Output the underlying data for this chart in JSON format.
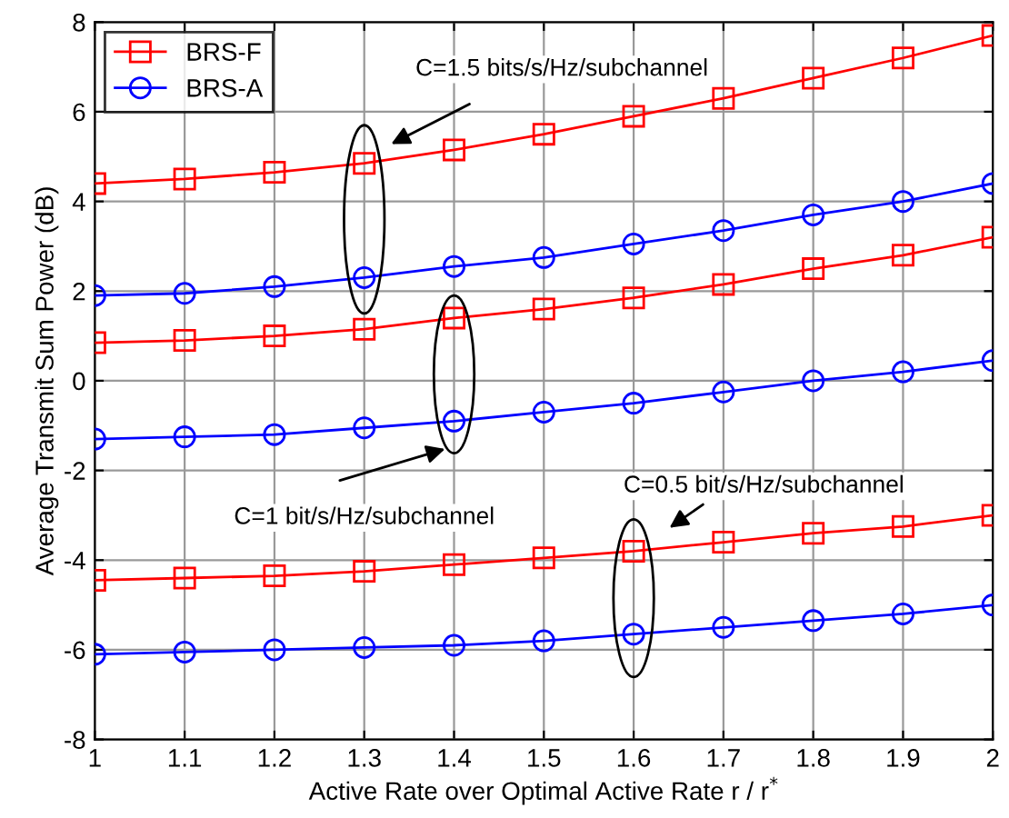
{
  "chart_data": {
    "type": "line",
    "xlabel": "Active Rate over Optimal Active Rate r / r$^{*}$",
    "ylabel": "Average Transmit Sum Power (dB)",
    "x": [
      1,
      1.1,
      1.2,
      1.3,
      1.4,
      1.5,
      1.6,
      1.7,
      1.8,
      1.9,
      2
    ],
    "series": [
      {
        "name": "BRS-F",
        "color": "#ff0000",
        "marker": "square",
        "values": [
          4.4,
          4.5,
          4.65,
          4.85,
          5.15,
          5.5,
          5.9,
          6.3,
          6.75,
          7.2,
          7.7
        ]
      },
      {
        "name": "BRS-A",
        "color": "#0000ff",
        "marker": "circle",
        "values": [
          1.9,
          1.95,
          2.1,
          2.3,
          2.55,
          2.75,
          3.05,
          3.35,
          3.7,
          4.0,
          4.4
        ]
      },
      {
        "color": "#ff0000",
        "marker": "square",
        "values": [
          0.85,
          0.9,
          1.0,
          1.15,
          1.4,
          1.6,
          1.85,
          2.15,
          2.5,
          2.8,
          3.2
        ]
      },
      {
        "color": "#0000ff",
        "marker": "circle",
        "values": [
          -1.3,
          -1.25,
          -1.2,
          -1.05,
          -0.9,
          -0.7,
          -0.5,
          -0.25,
          0.0,
          0.2,
          0.45
        ]
      },
      {
        "color": "#ff0000",
        "marker": "square",
        "values": [
          -4.45,
          -4.4,
          -4.35,
          -4.25,
          -4.1,
          -3.95,
          -3.8,
          -3.6,
          -3.4,
          -3.25,
          -3.0
        ]
      },
      {
        "color": "#0000ff",
        "marker": "circle",
        "values": [
          -6.1,
          -6.05,
          -6.0,
          -5.95,
          -5.9,
          -5.8,
          -5.65,
          -5.5,
          -5.35,
          -5.2,
          -5.0
        ]
      }
    ],
    "annotations": [
      "C=1.5 bits/s/Hz/subchannel",
      "C=1 bit/s/Hz/subchannel",
      "C=0.5 bit/s/Hz/subchannel"
    ],
    "xlim": [
      1,
      2
    ],
    "xticks": [
      1,
      1.1,
      1.2,
      1.3,
      1.4,
      1.5,
      1.6,
      1.7,
      1.8,
      1.9,
      2
    ],
    "ylim": [
      -8,
      8
    ],
    "yticks": [
      -8,
      -6,
      -4,
      -2,
      0,
      2,
      4,
      6,
      8
    ],
    "grid": true,
    "legend": "top left",
    "line_style": "solid"
  }
}
